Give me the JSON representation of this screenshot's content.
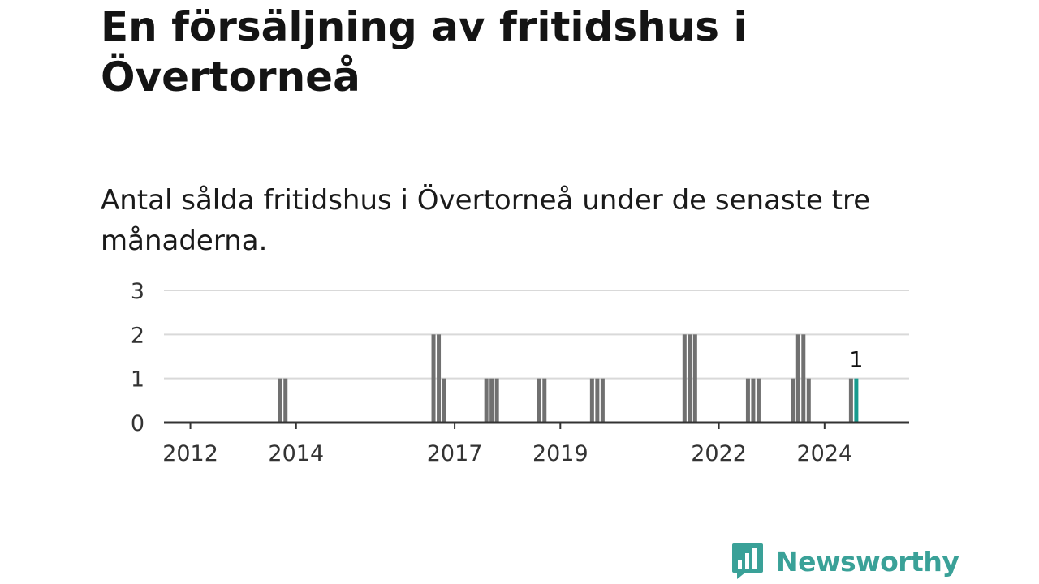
{
  "headline": "En försäljning av fritidshus i Övertorneå",
  "subtitle": "Antal sålda fritidshus i Övertorneå under de senaste tre månaderna.",
  "brand": {
    "name": "Newsworthy",
    "logo_icon": "bar-chart-speech-bubble-icon",
    "color": "#3aa198"
  },
  "chart_data": {
    "type": "bar",
    "ylim": [
      0,
      3
    ],
    "y_ticks": [
      0,
      1,
      2,
      3
    ],
    "x_range": [
      2011.5,
      2025.6
    ],
    "x_ticks": [
      2012,
      2014,
      2017,
      2019,
      2022,
      2024
    ],
    "grid": true,
    "bar_color": "#707070",
    "highlight_color": "#199a8e",
    "bars": [
      {
        "x": 2013.7,
        "value": 1
      },
      {
        "x": 2013.8,
        "value": 1
      },
      {
        "x": 2016.6,
        "value": 2
      },
      {
        "x": 2016.7,
        "value": 2
      },
      {
        "x": 2016.8,
        "value": 1
      },
      {
        "x": 2017.6,
        "value": 1
      },
      {
        "x": 2017.7,
        "value": 1
      },
      {
        "x": 2017.8,
        "value": 1
      },
      {
        "x": 2018.6,
        "value": 1
      },
      {
        "x": 2018.7,
        "value": 1
      },
      {
        "x": 2019.6,
        "value": 1
      },
      {
        "x": 2019.7,
        "value": 1
      },
      {
        "x": 2019.8,
        "value": 1
      },
      {
        "x": 2021.35,
        "value": 2
      },
      {
        "x": 2021.45,
        "value": 2
      },
      {
        "x": 2021.55,
        "value": 2
      },
      {
        "x": 2022.55,
        "value": 1
      },
      {
        "x": 2022.65,
        "value": 1
      },
      {
        "x": 2022.75,
        "value": 1
      },
      {
        "x": 2023.4,
        "value": 1
      },
      {
        "x": 2023.5,
        "value": 2
      },
      {
        "x": 2023.6,
        "value": 2
      },
      {
        "x": 2023.7,
        "value": 1
      },
      {
        "x": 2024.5,
        "value": 1
      },
      {
        "x": 2024.6,
        "value": 1,
        "highlight": true
      }
    ],
    "annotation": {
      "x": 2024.6,
      "value": 1,
      "text": "1"
    }
  }
}
